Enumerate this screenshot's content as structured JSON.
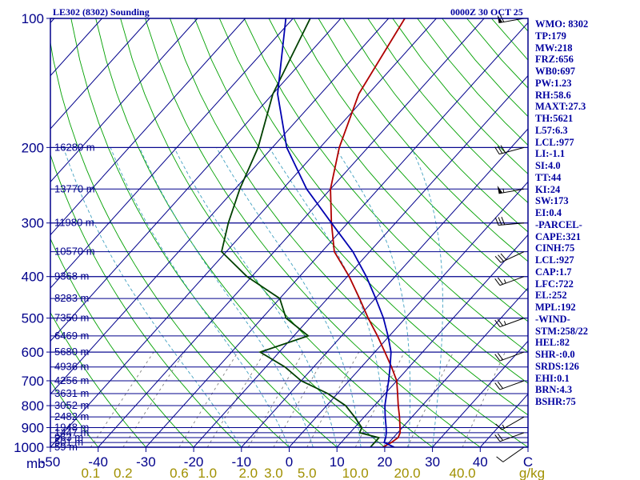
{
  "header": {
    "title": "LE302 (8302) Sounding",
    "datetime": "0000Z 30 OCT 25"
  },
  "colors": {
    "frame": "#00008b",
    "temperature": "#b00000",
    "dewpoint": "#004000",
    "parcel": "#0000b0",
    "dry_adiabat": "#00a000",
    "moist_adiabat": "#40a0c0",
    "mixing_ratio": "#808080",
    "mixing_ratio_label": "#a09000",
    "wind_barb": "#000000",
    "text": "#0000a0"
  },
  "chart_data": {
    "type": "skew-t",
    "title": "LE302 (8302) Sounding",
    "xlabel": "C",
    "ylabel": "mb",
    "xlim": [
      -50,
      50
    ],
    "ylim": [
      1000,
      100
    ],
    "pressure_ticks": [
      "100",
      "200",
      "300",
      "400",
      "500",
      "600",
      "700",
      "800",
      "900",
      "1000"
    ],
    "pressure_tick_values": [
      100,
      200,
      300,
      400,
      500,
      600,
      700,
      800,
      900,
      1000
    ],
    "temp_ticks": [
      "-50",
      "-40",
      "-30",
      "-20",
      "-10",
      "0",
      "10",
      "20",
      "30",
      "40",
      "C"
    ],
    "temp_tick_values": [
      -50,
      -40,
      -30,
      -20,
      -10,
      0,
      10,
      20,
      30,
      40,
      50
    ],
    "mixing_ratio_ticks": [
      "0.1",
      "0.2",
      "0.6",
      "1.0",
      "2.0",
      "3.0",
      "5.0",
      "10.0",
      "20.0",
      "40.0",
      "g/kg"
    ],
    "mixing_ratio_values": [
      0.1,
      0.2,
      0.6,
      1.0,
      2.0,
      3.0,
      5.0,
      10.0,
      20.0,
      40.0
    ],
    "height_levels": [
      {
        "p": 1000,
        "label": "59 m"
      },
      {
        "p": 975,
        "label": "501 m"
      },
      {
        "p": 950,
        "label": "963 m"
      },
      {
        "p": 925,
        "label": "1447 m"
      },
      {
        "p": 900,
        "label": "1948 m"
      },
      {
        "p": 850,
        "label": "2482 m"
      },
      {
        "p": 800,
        "label": "3052 m"
      },
      {
        "p": 750,
        "label": "3631 m"
      },
      {
        "p": 700,
        "label": "4256 m"
      },
      {
        "p": 650,
        "label": "4936 m"
      },
      {
        "p": 600,
        "label": "5680 m"
      },
      {
        "p": 550,
        "label": "6469 m"
      },
      {
        "p": 500,
        "label": "7350 m"
      },
      {
        "p": 450,
        "label": "8283 m"
      },
      {
        "p": 400,
        "label": "9368 m"
      },
      {
        "p": 350,
        "label": "10570 m"
      },
      {
        "p": 300,
        "label": "11980 m"
      },
      {
        "p": 250,
        "label": "13770 m"
      },
      {
        "p": 200,
        "label": "16280 m"
      }
    ],
    "series": [
      {
        "name": "temperature",
        "points": [
          [
            1000,
            19.6
          ],
          [
            975,
            20.5
          ],
          [
            950,
            21.0
          ],
          [
            925,
            20.5
          ],
          [
            900,
            19.5
          ],
          [
            850,
            17.4
          ],
          [
            800,
            15.0
          ],
          [
            750,
            12.6
          ],
          [
            700,
            10.0
          ],
          [
            650,
            6.3
          ],
          [
            600,
            2.1
          ],
          [
            550,
            -2.5
          ],
          [
            500,
            -7.8
          ],
          [
            450,
            -13.3
          ],
          [
            400,
            -19.6
          ],
          [
            350,
            -27.4
          ],
          [
            300,
            -33.4
          ],
          [
            250,
            -40.0
          ],
          [
            200,
            -46.0
          ],
          [
            150,
            -52.0
          ],
          [
            100,
            -56.6
          ]
        ]
      },
      {
        "name": "dewpoint",
        "points": [
          [
            1000,
            17.0
          ],
          [
            975,
            17.0
          ],
          [
            950,
            17.0
          ],
          [
            925,
            12.0
          ],
          [
            900,
            11.5
          ],
          [
            850,
            8.0
          ],
          [
            800,
            4.0
          ],
          [
            750,
            -2.0
          ],
          [
            700,
            -10.0
          ],
          [
            650,
            -16.0
          ],
          [
            600,
            -24.0
          ],
          [
            550,
            -17.0
          ],
          [
            500,
            -25.0
          ],
          [
            450,
            -30.0
          ],
          [
            400,
            -41.0
          ],
          [
            350,
            -51.0
          ],
          [
            300,
            -55.0
          ],
          [
            250,
            -59.0
          ],
          [
            200,
            -63.0
          ],
          [
            150,
            -70.0
          ],
          [
            100,
            -76.4
          ]
        ]
      },
      {
        "name": "parcel",
        "points": [
          [
            1000,
            22.0
          ],
          [
            975,
            19.0
          ],
          [
            950,
            18.4
          ],
          [
            925,
            17.6
          ],
          [
            900,
            16.6
          ],
          [
            850,
            14.4
          ],
          [
            800,
            12.2
          ],
          [
            750,
            10.3
          ],
          [
            700,
            8.3
          ],
          [
            650,
            6.0
          ],
          [
            600,
            3.4
          ],
          [
            550,
            -0.3
          ],
          [
            500,
            -4.6
          ],
          [
            450,
            -9.9
          ],
          [
            400,
            -16.0
          ],
          [
            350,
            -23.5
          ],
          [
            300,
            -33.4
          ],
          [
            250,
            -45.0
          ],
          [
            200,
            -57.0
          ],
          [
            150,
            -69.0
          ],
          [
            100,
            -81.5
          ]
        ]
      }
    ],
    "wind_barbs": [
      {
        "p": 100,
        "dir": 260,
        "kt": 60
      },
      {
        "p": 200,
        "dir": 255,
        "kt": 30
      },
      {
        "p": 250,
        "dir": 260,
        "kt": 55
      },
      {
        "p": 300,
        "dir": 265,
        "kt": 30
      },
      {
        "p": 350,
        "dir": 245,
        "kt": 30
      },
      {
        "p": 400,
        "dir": 250,
        "kt": 25
      },
      {
        "p": 500,
        "dir": 250,
        "kt": 25
      },
      {
        "p": 600,
        "dir": 250,
        "kt": 20
      },
      {
        "p": 700,
        "dir": 250,
        "kt": 20
      },
      {
        "p": 850,
        "dir": 240,
        "kt": 15
      },
      {
        "p": 925,
        "dir": 250,
        "kt": 20
      },
      {
        "p": 1000,
        "dir": 235,
        "kt": 10
      }
    ]
  },
  "indices": [
    "WMO: 8302",
    "TP:179",
    "MW:218",
    "FRZ:656",
    "WB0:697",
    "PW:1.23",
    "RH:58.6",
    "MAXT:27.3",
    "TH:5621",
    "L57:6.3",
    "LCL:977",
    "LI:-1.1",
    "SI:4.0",
    "TT:44",
    "KI:24",
    "SW:173",
    "EI:0.4",
    "-PARCEL-",
    "CAPE:321",
    "CINH:75",
    "LCL:927",
    "CAP:1.7",
    "LFC:722",
    "EL:252",
    "MPL:192",
    "-WIND-",
    "STM:258/22",
    "HEL:82",
    "SHR-:0.0",
    "SRDS:126",
    "EHI:0.1",
    "BRN:4.3",
    "BSHR:75"
  ]
}
